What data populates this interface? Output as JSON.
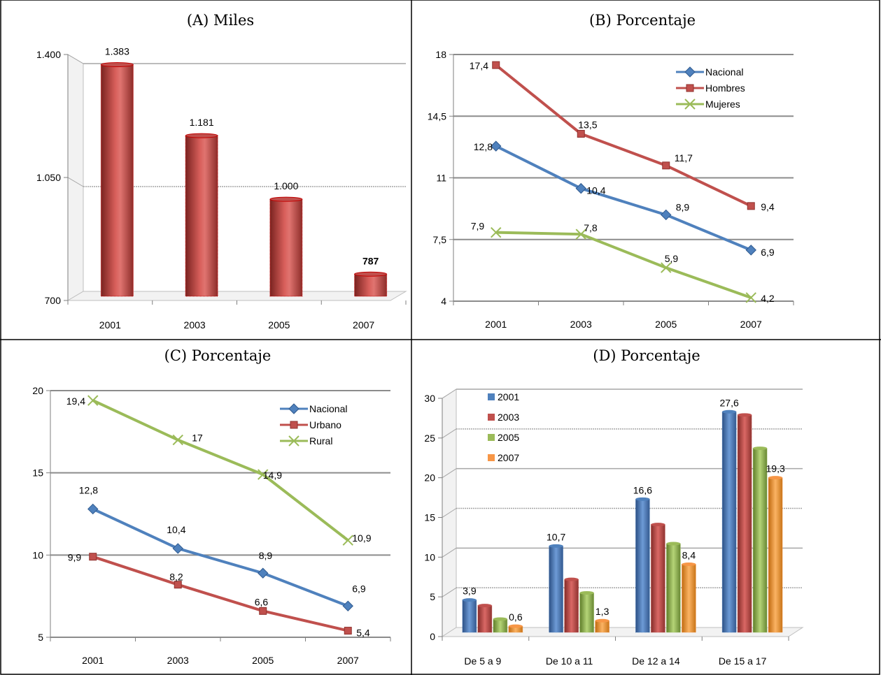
{
  "charts": {
    "A": {
      "title": "(A) Miles",
      "chart_data": {
        "type": "bar",
        "title": "(A) Miles",
        "categories": [
          "2001",
          "2003",
          "2005",
          "2007"
        ],
        "values": [
          1383,
          1181,
          1000,
          787
        ],
        "value_labels": [
          "1.383",
          "1.181",
          "1.000",
          "787"
        ],
        "ylim": [
          700,
          1400
        ],
        "yticks": [
          "700",
          "1.050",
          "1.400"
        ],
        "ytick_values": [
          700,
          1050,
          1400
        ],
        "grid": true,
        "color": "#c0504d"
      }
    },
    "B": {
      "title": "(B) Porcentaje",
      "chart_data": {
        "type": "line",
        "title": "(B) Porcentaje",
        "categories": [
          "2001",
          "2003",
          "2005",
          "2007"
        ],
        "ylim": [
          4,
          18
        ],
        "yticks": [
          "4",
          "7,5",
          "11",
          "14,5",
          "18"
        ],
        "ytick_values": [
          4,
          7.5,
          11,
          14.5,
          18
        ],
        "grid": true,
        "legend": "top-right",
        "series": [
          {
            "name": "Nacional",
            "values": [
              12.8,
              10.4,
              8.9,
              6.9
            ],
            "labels": [
              "12,8",
              "10,4",
              "8,9",
              "6,9"
            ],
            "color": "#4f81bd",
            "marker": "diamond"
          },
          {
            "name": "Hombres",
            "values": [
              17.4,
              13.5,
              11.7,
              9.4
            ],
            "labels": [
              "17,4",
              "13,5",
              "11,7",
              "9,4"
            ],
            "color": "#c0504d",
            "marker": "square"
          },
          {
            "name": "Mujeres",
            "values": [
              7.9,
              7.8,
              5.9,
              4.2
            ],
            "labels": [
              "7,9",
              "7,8",
              "5,9",
              "4,2"
            ],
            "color": "#9bbb59",
            "marker": "x"
          }
        ]
      }
    },
    "C": {
      "title": "(C) Porcentaje",
      "chart_data": {
        "type": "line",
        "title": "(C) Porcentaje",
        "categories": [
          "2001",
          "2003",
          "2005",
          "2007"
        ],
        "ylim": [
          5,
          20
        ],
        "yticks": [
          "5",
          "10",
          "15",
          "20"
        ],
        "ytick_values": [
          5,
          10,
          15,
          20
        ],
        "grid": true,
        "legend": "top-right",
        "series": [
          {
            "name": "Nacional",
            "values": [
              12.8,
              10.4,
              8.9,
              6.9
            ],
            "labels": [
              "12,8",
              "10,4",
              "8,9",
              "6,9"
            ],
            "color": "#4f81bd",
            "marker": "diamond"
          },
          {
            "name": "Urbano",
            "values": [
              9.9,
              8.2,
              6.6,
              5.4
            ],
            "labels": [
              "9,9",
              "8,2",
              "6,6",
              "5,4"
            ],
            "color": "#c0504d",
            "marker": "square"
          },
          {
            "name": "Rural",
            "values": [
              19.4,
              17,
              14.9,
              10.9
            ],
            "labels": [
              "19,4",
              "17",
              "14,9",
              "10,9"
            ],
            "color": "#9bbb59",
            "marker": "x"
          }
        ]
      }
    },
    "D": {
      "title": "(D) Porcentaje",
      "chart_data": {
        "type": "bar",
        "title": "(D) Porcentaje",
        "categories": [
          "De 5 a 9",
          "De 10 a 11",
          "De 12 a 14",
          "De 15 a 17"
        ],
        "ylim": [
          0,
          30
        ],
        "yticks": [
          "0",
          "5",
          "10",
          "15",
          "20",
          "25",
          "30"
        ],
        "ytick_values": [
          0,
          5,
          10,
          15,
          20,
          25,
          30
        ],
        "grid": true,
        "legend": "top-left",
        "series": [
          {
            "name": "2001",
            "values": [
              3.9,
              10.7,
              16.6,
              27.6
            ],
            "color": "#4f81bd"
          },
          {
            "name": "2003",
            "values": [
              3.2,
              6.5,
              13.4,
              27.2
            ],
            "color": "#c0504d"
          },
          {
            "name": "2005",
            "values": [
              1.5,
              4.8,
              11.0,
              23.0
            ],
            "color": "#9bbb59"
          },
          {
            "name": "2007",
            "values": [
              0.6,
              1.3,
              8.4,
              19.3
            ],
            "color": "#f79646"
          }
        ],
        "data_labels": [
          {
            "series": 0,
            "category": 0,
            "text": "3,9"
          },
          {
            "series": 3,
            "category": 0,
            "text": "0,6"
          },
          {
            "series": 0,
            "category": 1,
            "text": "10,7"
          },
          {
            "series": 3,
            "category": 1,
            "text": "1,3"
          },
          {
            "series": 0,
            "category": 2,
            "text": "16,6"
          },
          {
            "series": 3,
            "category": 2,
            "text": "8,4"
          },
          {
            "series": 0,
            "category": 3,
            "text": "27,6"
          },
          {
            "series": 3,
            "category": 3,
            "text": "19,3"
          }
        ]
      }
    }
  }
}
